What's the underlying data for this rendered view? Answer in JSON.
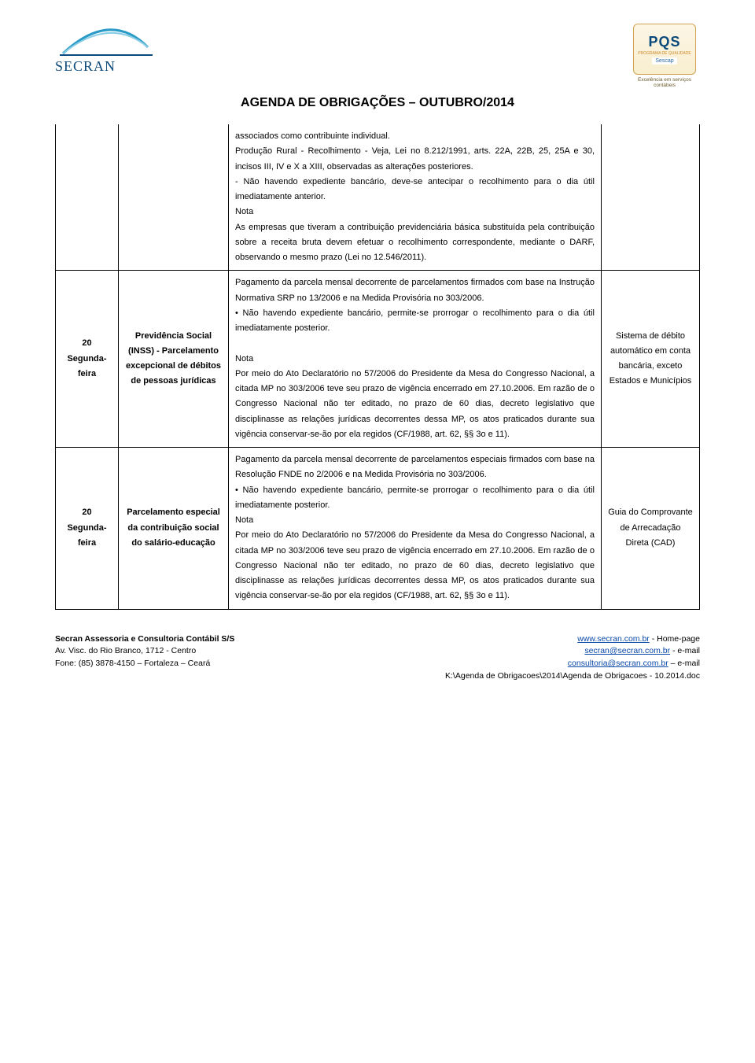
{
  "header": {
    "logo_left_text": "SECRAN",
    "logo_arc_color": "#2a9bc7",
    "logo_text_color": "#0b4a7a",
    "pqs_top": "PQS",
    "pqs_mid": "PROGRAMA DE QUALIDADE",
    "pqs_sescap": "Sescap",
    "pqs_caption": "Excelência em serviços contábeis",
    "doc_title": "AGENDA DE OBRIGAÇÕES – OUTUBRO/2014"
  },
  "rows": [
    {
      "date": "",
      "subject": "",
      "body": "associados como contribuinte individual.\nProdução Rural - Recolhimento - Veja, Lei no 8.212/1991, arts. 22A, 22B, 25, 25A e 30, incisos III, IV e X a XIII, observadas as alterações posteriores.\n- Não havendo expediente bancário, deve-se antecipar o recolhimento para o dia útil imediatamente anterior.\nNota\nAs empresas que tiveram a contribuição previdenciária básica substituída pela contribuição sobre a receita bruta devem efetuar o recolhimento correspondente, mediante o DARF, observando o mesmo prazo (Lei no 12.546/2011).",
      "notes": "",
      "continuation": true
    },
    {
      "date": "20\nSegunda-feira",
      "subject": "Previdência Social (INSS) - Parcelamento excepcional de débitos de pessoas jurídicas",
      "body": "Pagamento da parcela mensal decorrente de parcelamentos firmados com base na Instrução Normativa SRP no 13/2006 e na Medida Provisória no 303/2006.\n• Não havendo expediente bancário, permite-se prorrogar o recolhimento para o dia útil imediatamente posterior.\n\nNota\nPor meio do Ato Declaratório no 57/2006 do Presidente da Mesa do Congresso Nacional, a citada MP no 303/2006 teve seu prazo de vigência encerrado em 27.10.2006. Em razão de o Congresso Nacional não ter editado, no prazo de 60 dias, decreto legislativo que disciplinasse as relações jurídicas decorrentes dessa MP, os atos praticados durante sua vigência conservar-se-ão por ela regidos (CF/1988, art. 62, §§ 3o e 11).",
      "notes": "Sistema de débito automático em conta bancária, exceto Estados e Municípios",
      "continuation": false
    },
    {
      "date": "20\nSegunda-feira",
      "subject": "Parcelamento especial da contribuição social do salário-educação",
      "body": "Pagamento da parcela mensal decorrente de parcelamentos especiais firmados com base na Resolução FNDE no 2/2006 e na Medida Provisória no 303/2006.\n• Não havendo expediente bancário, permite-se prorrogar o recolhimento para o dia útil imediatamente posterior.\nNota\nPor meio do Ato Declaratório no 57/2006 do Presidente da Mesa do Congresso Nacional, a citada MP no 303/2006 teve seu prazo de vigência encerrado em 27.10.2006. Em razão de o Congresso Nacional não ter editado, no prazo de 60 dias, decreto legislativo que disciplinasse as relações jurídicas decorrentes dessa MP, os atos praticados durante sua vigência conservar-se-ão por ela regidos (CF/1988, art. 62, §§ 3o e 11).",
      "notes": "Guia do Comprovante de Arrecadação Direta (CAD)",
      "continuation": false
    }
  ],
  "footer": {
    "company_name": "Secran Assessoria e Consultoria Contábil S/S",
    "address_line1": "Av. Visc. do Rio Branco, 1712 - Centro",
    "address_line2": "Fone: (85) 3878-4150 – Fortaleza – Ceará",
    "home_url": "www.secran.com.br",
    "home_label": " - Home-page",
    "email1": "secran@secran.com.br",
    "email1_label": " - e-mail",
    "email2": "consultoria@secran.com.br",
    "email2_label": " – e-mail",
    "path": "K:\\Agenda de Obrigacoes\\2014\\Agenda de Obrigacoes - 10.2014.doc"
  }
}
